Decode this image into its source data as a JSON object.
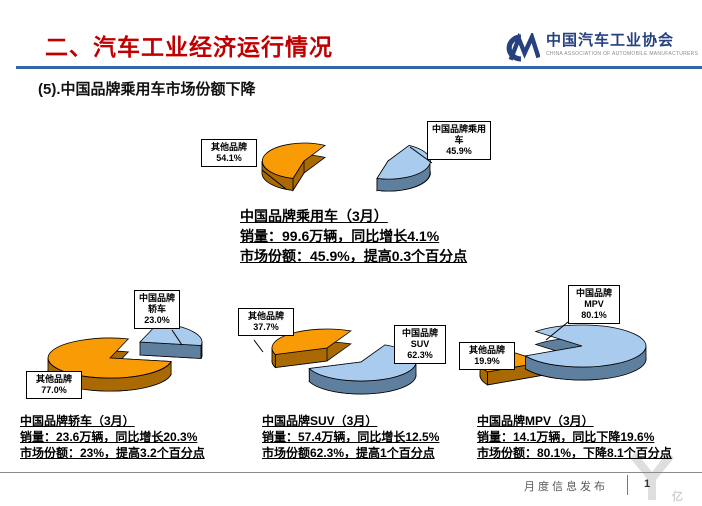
{
  "slide": {
    "title": "二、汽车工业经济运行情况",
    "subtitle": "(5).中国品牌乘用车市场份额下降"
  },
  "logo": {
    "name": "中国汽车工业协会",
    "tagline": "CHINA ASSOCIATION OF AUTOMOBILE MANUFACTURERS"
  },
  "colors": {
    "title_red": "#C00000",
    "rule_blue": "#3465A4",
    "logo_navy": "#26417F",
    "orange_top": "#F99B05",
    "orange_side": "#A96A04",
    "blue_top": "#A9CCEE",
    "blue_side": "#5F7F9F",
    "footer_gray": "#595959"
  },
  "chart_data": [
    {
      "type": "pie",
      "id": "passenger",
      "title": "中国品牌乘用车市场份额（3月）",
      "legend_position": "callout",
      "grid": false,
      "slices": [
        {
          "label": "中国品牌乘用车",
          "value": 45.9,
          "display": "45.9%",
          "color_key": "blue"
        },
        {
          "label": "其他品牌",
          "value": 54.1,
          "display": "54.1%",
          "color_key": "orange"
        }
      ]
    },
    {
      "type": "pie",
      "id": "sedan",
      "title": "中国品牌轿车市场份额（3月）",
      "legend_position": "callout",
      "grid": false,
      "slices": [
        {
          "label": "中国品牌轿车",
          "value": 23.0,
          "display": "23.0%",
          "color_key": "blue"
        },
        {
          "label": "其他品牌",
          "value": 77.0,
          "display": "77.0%",
          "color_key": "orange"
        }
      ]
    },
    {
      "type": "pie",
      "id": "suv",
      "title": "中国品牌SUV市场份额（3月）",
      "legend_position": "callout",
      "grid": false,
      "slices": [
        {
          "label": "其他品牌",
          "value": 37.7,
          "display": "37.7%",
          "color_key": "orange"
        },
        {
          "label": "中国品牌SUV",
          "value": 62.3,
          "display": "62.3%",
          "color_key": "blue"
        }
      ]
    },
    {
      "type": "pie",
      "id": "mpv",
      "title": "中国品牌MPV市场份额（3月）",
      "legend_position": "callout",
      "grid": false,
      "slices": [
        {
          "label": "其他品牌",
          "value": 19.9,
          "display": "19.9%",
          "color_key": "orange"
        },
        {
          "label": "中国品牌MPV",
          "value": 80.1,
          "display": "80.1%",
          "color_key": "blue"
        }
      ]
    }
  ],
  "summaries": {
    "passenger": {
      "lines": [
        "中国品牌乘用车（3月）",
        "销量：99.6万辆，同比增长4.1%",
        "市场份额：45.9%，提高0.3个百分点"
      ]
    },
    "sedan": {
      "lines": [
        "中国品牌轿车（3月）",
        "销量：23.6万辆，同比增长20.3%",
        "市场份额：23%，提高3.2个百分点"
      ]
    },
    "suv": {
      "lines": [
        "中国品牌SUV（3月）",
        "销量：57.4万辆，同比增长12.5%",
        "市场份额62.3%，提高1个百分点"
      ]
    },
    "mpv": {
      "lines": [
        "中国品牌MPV（3月）",
        "销量：14.1万辆，同比下降19.6%",
        "市场份额：80.1%，下降8.1个百分点"
      ]
    }
  },
  "footer": {
    "label": "月度信息发布",
    "page": "1",
    "watermark": "亿欧"
  }
}
